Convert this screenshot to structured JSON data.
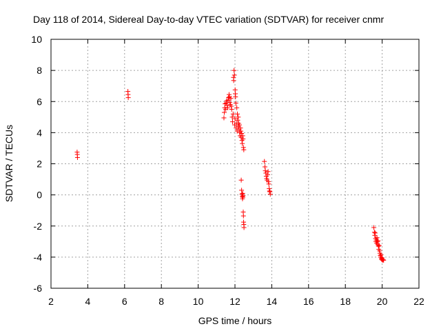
{
  "chart_data": {
    "type": "scatter",
    "title": "Day 118 of 2014, Sidereal Day-to-day VTEC variation (SDTVAR) for receiver cnmr",
    "xlabel": "GPS time / hours",
    "ylabel": "SDTVAR / TECUs",
    "xlim": [
      2,
      22
    ],
    "ylim": [
      -6,
      10
    ],
    "xticks": [
      2,
      4,
      6,
      8,
      10,
      12,
      14,
      16,
      18,
      20,
      22
    ],
    "yticks": [
      -6,
      -4,
      -2,
      0,
      2,
      4,
      6,
      8,
      10
    ],
    "xtick_labels": [
      "2",
      "4",
      "6",
      "8",
      "10",
      "12",
      "14",
      "16",
      "18",
      "20",
      "22"
    ],
    "ytick_labels": [
      "-6",
      "-4",
      "-2",
      "0",
      "2",
      "4",
      "6",
      "8",
      "10"
    ],
    "grid": true,
    "marker": "+",
    "color": "#ff0000",
    "series": [
      {
        "name": "SDTVAR",
        "points": [
          [
            3.42,
            2.75
          ],
          [
            3.43,
            2.6
          ],
          [
            3.44,
            2.4
          ],
          [
            6.18,
            6.65
          ],
          [
            6.19,
            6.45
          ],
          [
            6.2,
            6.25
          ],
          [
            11.4,
            4.95
          ],
          [
            11.42,
            5.3
          ],
          [
            11.44,
            5.6
          ],
          [
            11.46,
            5.85
          ],
          [
            11.5,
            5.5
          ],
          [
            11.52,
            5.9
          ],
          [
            11.55,
            6.05
          ],
          [
            11.58,
            5.75
          ],
          [
            11.6,
            5.6
          ],
          [
            11.63,
            6.1
          ],
          [
            11.65,
            6.25
          ],
          [
            11.68,
            6.45
          ],
          [
            11.7,
            6.3
          ],
          [
            11.72,
            5.95
          ],
          [
            11.75,
            5.8
          ],
          [
            11.78,
            6.2
          ],
          [
            11.8,
            5.7
          ],
          [
            11.82,
            5.5
          ],
          [
            11.85,
            5.0
          ],
          [
            11.87,
            4.7
          ],
          [
            11.9,
            5.2
          ],
          [
            11.92,
            7.55
          ],
          [
            11.93,
            7.35
          ],
          [
            11.95,
            8.0
          ],
          [
            11.97,
            7.7
          ],
          [
            11.98,
            4.5
          ],
          [
            12.0,
            4.9
          ],
          [
            12.01,
            6.75
          ],
          [
            12.02,
            6.5
          ],
          [
            12.03,
            6.3
          ],
          [
            12.05,
            5.9
          ],
          [
            12.06,
            4.3
          ],
          [
            12.08,
            4.6
          ],
          [
            12.1,
            5.6
          ],
          [
            12.12,
            4.1
          ],
          [
            12.13,
            5.2
          ],
          [
            12.15,
            4.8
          ],
          [
            12.17,
            4.4
          ],
          [
            12.18,
            5.0
          ],
          [
            12.2,
            4.6
          ],
          [
            12.22,
            4.2
          ],
          [
            12.24,
            4.5
          ],
          [
            12.26,
            4.0
          ],
          [
            12.28,
            3.8
          ],
          [
            12.3,
            4.3
          ],
          [
            12.32,
            4.1
          ],
          [
            12.34,
            3.7
          ],
          [
            12.36,
            3.95
          ],
          [
            12.38,
            3.5
          ],
          [
            12.4,
            3.3
          ],
          [
            12.42,
            3.8
          ],
          [
            12.44,
            3.6
          ],
          [
            12.46,
            3.05
          ],
          [
            12.48,
            2.9
          ],
          [
            12.34,
            0.95
          ],
          [
            12.36,
            0.3
          ],
          [
            12.38,
            0.05
          ],
          [
            12.4,
            -0.1
          ],
          [
            12.41,
            -0.25
          ],
          [
            12.42,
            0.1
          ],
          [
            12.43,
            -0.15
          ],
          [
            12.44,
            -0.05
          ],
          [
            12.45,
            -1.1
          ],
          [
            12.46,
            -1.35
          ],
          [
            12.47,
            -1.75
          ],
          [
            12.48,
            -1.9
          ],
          [
            12.49,
            -2.1
          ],
          [
            13.6,
            2.15
          ],
          [
            13.63,
            1.8
          ],
          [
            13.65,
            1.55
          ],
          [
            13.68,
            1.4
          ],
          [
            13.7,
            1.2
          ],
          [
            13.72,
            1.05
          ],
          [
            13.75,
            0.95
          ],
          [
            13.78,
            1.3
          ],
          [
            13.8,
            1.5
          ],
          [
            13.82,
            0.85
          ],
          [
            13.84,
            0.7
          ],
          [
            13.86,
            0.4
          ],
          [
            13.88,
            0.25
          ],
          [
            13.9,
            0.2
          ],
          [
            13.92,
            0.05
          ],
          [
            19.55,
            -2.1
          ],
          [
            19.58,
            -2.4
          ],
          [
            19.6,
            -2.6
          ],
          [
            19.62,
            -2.45
          ],
          [
            19.64,
            -2.8
          ],
          [
            19.66,
            -3.0
          ],
          [
            19.68,
            -2.9
          ],
          [
            19.7,
            -3.1
          ],
          [
            19.72,
            -2.75
          ],
          [
            19.74,
            -3.0
          ],
          [
            19.76,
            -3.2
          ],
          [
            19.78,
            -2.95
          ],
          [
            19.8,
            -3.3
          ],
          [
            19.82,
            -3.5
          ],
          [
            19.84,
            -3.25
          ],
          [
            19.86,
            -3.6
          ],
          [
            19.88,
            -3.75
          ],
          [
            19.9,
            -3.9
          ],
          [
            19.92,
            -4.0
          ],
          [
            19.94,
            -3.85
          ],
          [
            19.96,
            -4.1
          ],
          [
            19.98,
            -4.15
          ],
          [
            20.0,
            -4.05
          ],
          [
            20.02,
            -4.2
          ],
          [
            20.05,
            -4.15
          ],
          [
            20.08,
            -4.2
          ]
        ]
      }
    ]
  }
}
